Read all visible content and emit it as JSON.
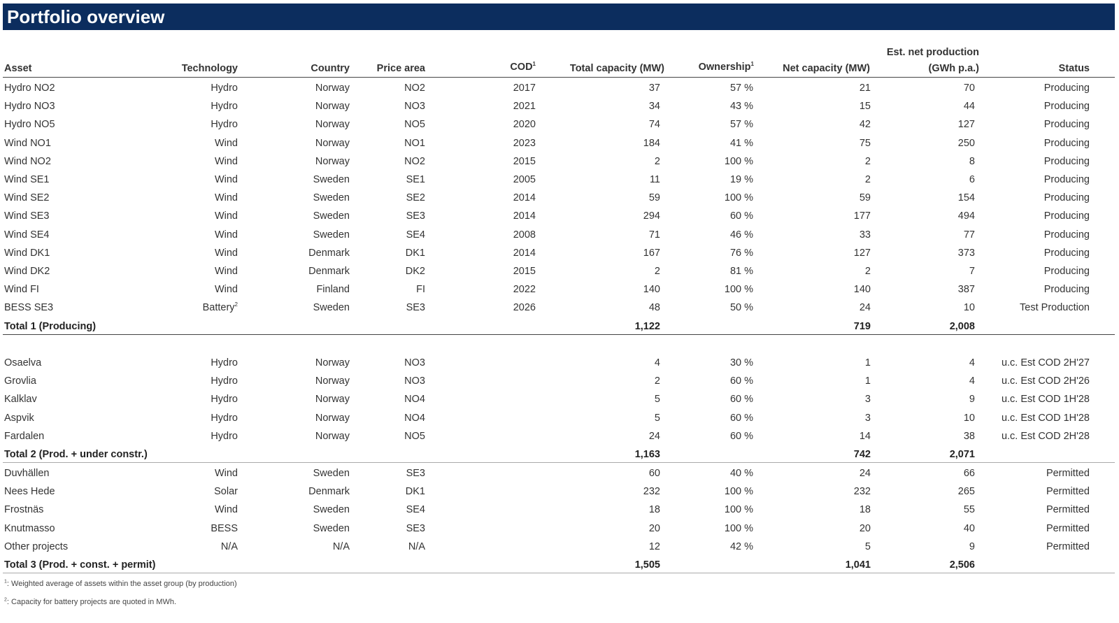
{
  "title": "Portfolio overview",
  "headers": {
    "asset": "Asset",
    "technology": "Technology",
    "country": "Country",
    "price_area": "Price area",
    "cod": "COD",
    "cod_sup": "1",
    "total_capacity": "Total capacity (MW)",
    "ownership": "Ownership",
    "ownership_sup": "1",
    "net_capacity": "Net capacity (MW)",
    "est_prod_line1": "Est. net production",
    "est_prod_line2": "(GWh p.a.)",
    "status": "Status"
  },
  "group1": [
    {
      "asset": "Hydro NO2",
      "tech": "Hydro",
      "tech_sup": "",
      "country": "Norway",
      "area": "NO2",
      "cod": "2017",
      "total": "37",
      "own": "57 %",
      "net": "21",
      "prod": "70",
      "status": "Producing"
    },
    {
      "asset": "Hydro NO3",
      "tech": "Hydro",
      "tech_sup": "",
      "country": "Norway",
      "area": "NO3",
      "cod": "2021",
      "total": "34",
      "own": "43 %",
      "net": "15",
      "prod": "44",
      "status": "Producing"
    },
    {
      "asset": "Hydro NO5",
      "tech": "Hydro",
      "tech_sup": "",
      "country": "Norway",
      "area": "NO5",
      "cod": "2020",
      "total": "74",
      "own": "57 %",
      "net": "42",
      "prod": "127",
      "status": "Producing"
    },
    {
      "asset": "Wind NO1",
      "tech": "Wind",
      "tech_sup": "",
      "country": "Norway",
      "area": "NO1",
      "cod": "2023",
      "total": "184",
      "own": "41 %",
      "net": "75",
      "prod": "250",
      "status": "Producing"
    },
    {
      "asset": "Wind NO2",
      "tech": "Wind",
      "tech_sup": "",
      "country": "Norway",
      "area": "NO2",
      "cod": "2015",
      "total": "2",
      "own": "100 %",
      "net": "2",
      "prod": "8",
      "status": "Producing"
    },
    {
      "asset": "Wind SE1",
      "tech": "Wind",
      "tech_sup": "",
      "country": "Sweden",
      "area": "SE1",
      "cod": "2005",
      "total": "11",
      "own": "19 %",
      "net": "2",
      "prod": "6",
      "status": "Producing"
    },
    {
      "asset": "Wind SE2",
      "tech": "Wind",
      "tech_sup": "",
      "country": "Sweden",
      "area": "SE2",
      "cod": "2014",
      "total": "59",
      "own": "100 %",
      "net": "59",
      "prod": "154",
      "status": "Producing"
    },
    {
      "asset": "Wind SE3",
      "tech": "Wind",
      "tech_sup": "",
      "country": "Sweden",
      "area": "SE3",
      "cod": "2014",
      "total": "294",
      "own": "60 %",
      "net": "177",
      "prod": "494",
      "status": "Producing"
    },
    {
      "asset": "Wind SE4",
      "tech": "Wind",
      "tech_sup": "",
      "country": "Sweden",
      "area": "SE4",
      "cod": "2008",
      "total": "71",
      "own": "46 %",
      "net": "33",
      "prod": "77",
      "status": "Producing"
    },
    {
      "asset": "Wind DK1",
      "tech": "Wind",
      "tech_sup": "",
      "country": "Denmark",
      "area": "DK1",
      "cod": "2014",
      "total": "167",
      "own": "76 %",
      "net": "127",
      "prod": "373",
      "status": "Producing"
    },
    {
      "asset": "Wind DK2",
      "tech": "Wind",
      "tech_sup": "",
      "country": "Denmark",
      "area": "DK2",
      "cod": "2015",
      "total": "2",
      "own": "81 %",
      "net": "2",
      "prod": "7",
      "status": "Producing"
    },
    {
      "asset": "Wind FI",
      "tech": "Wind",
      "tech_sup": "",
      "country": "Finland",
      "area": "FI",
      "cod": "2022",
      "total": "140",
      "own": "100 %",
      "net": "140",
      "prod": "387",
      "status": "Producing"
    },
    {
      "asset": "BESS SE3",
      "tech": "Battery",
      "tech_sup": "2",
      "country": "Sweden",
      "area": "SE3",
      "cod": "2026",
      "total": "48",
      "own": "50 %",
      "net": "24",
      "prod": "10",
      "status": "Test Production"
    }
  ],
  "total1": {
    "label": "Total 1 (Producing)",
    "total": "1,122",
    "net": "719",
    "prod": "2,008"
  },
  "group2": [
    {
      "asset": "Osaelva",
      "tech": "Hydro",
      "tech_sup": "",
      "country": "Norway",
      "area": "NO3",
      "cod": "",
      "total": "4",
      "own": "30 %",
      "net": "1",
      "prod": "4",
      "status": "u.c. Est COD 2H'27"
    },
    {
      "asset": "Grovlia",
      "tech": "Hydro",
      "tech_sup": "",
      "country": "Norway",
      "area": "NO3",
      "cod": "",
      "total": "2",
      "own": "60 %",
      "net": "1",
      "prod": "4",
      "status": "u.c. Est COD 2H'26"
    },
    {
      "asset": "Kalklav",
      "tech": "Hydro",
      "tech_sup": "",
      "country": "Norway",
      "area": "NO4",
      "cod": "",
      "total": "5",
      "own": "60 %",
      "net": "3",
      "prod": "9",
      "status": "u.c. Est COD 1H'28"
    },
    {
      "asset": "Aspvik",
      "tech": "Hydro",
      "tech_sup": "",
      "country": "Norway",
      "area": "NO4",
      "cod": "",
      "total": "5",
      "own": "60 %",
      "net": "3",
      "prod": "10",
      "status": "u.c. Est COD 1H'28"
    },
    {
      "asset": "Fardalen",
      "tech": "Hydro",
      "tech_sup": "",
      "country": "Norway",
      "area": "NO5",
      "cod": "",
      "total": "24",
      "own": "60 %",
      "net": "14",
      "prod": "38",
      "status": "u.c. Est COD 2H'28"
    }
  ],
  "total2": {
    "label": "Total 2 (Prod. + under constr.)",
    "total": "1,163",
    "net": "742",
    "prod": "2,071"
  },
  "group3": [
    {
      "asset": "Duvhällen",
      "tech": "Wind",
      "tech_sup": "",
      "country": "Sweden",
      "area": "SE3",
      "cod": "",
      "total": "60",
      "own": "40 %",
      "net": "24",
      "prod": "66",
      "status": "Permitted"
    },
    {
      "asset": "Nees Hede",
      "tech": "Solar",
      "tech_sup": "",
      "country": "Denmark",
      "area": "DK1",
      "cod": "",
      "total": "232",
      "own": "100 %",
      "net": "232",
      "prod": "265",
      "status": "Permitted"
    },
    {
      "asset": "Frostnäs",
      "tech": "Wind",
      "tech_sup": "",
      "country": "Sweden",
      "area": "SE4",
      "cod": "",
      "total": "18",
      "own": "100 %",
      "net": "18",
      "prod": "55",
      "status": "Permitted"
    },
    {
      "asset": "Knutmasso",
      "tech": "BESS",
      "tech_sup": "",
      "country": "Sweden",
      "area": "SE3",
      "cod": "",
      "total": "20",
      "own": "100 %",
      "net": "20",
      "prod": "40",
      "status": "Permitted"
    },
    {
      "asset": "Other projects",
      "tech": "N/A",
      "tech_sup": "",
      "country": "N/A",
      "area": "N/A",
      "cod": "",
      "total": "12",
      "own": "42 %",
      "net": "5",
      "prod": "9",
      "status": "Permitted"
    }
  ],
  "total3": {
    "label": "Total 3 (Prod. + const. + permit)",
    "total": "1,505",
    "net": "1,041",
    "prod": "2,506"
  },
  "footnotes": [
    {
      "sup": "1",
      "text": ": Weighted average of assets within the asset group (by production)"
    },
    {
      "sup": "2",
      "text": ": Capacity for battery projects are quoted in MWh."
    }
  ]
}
